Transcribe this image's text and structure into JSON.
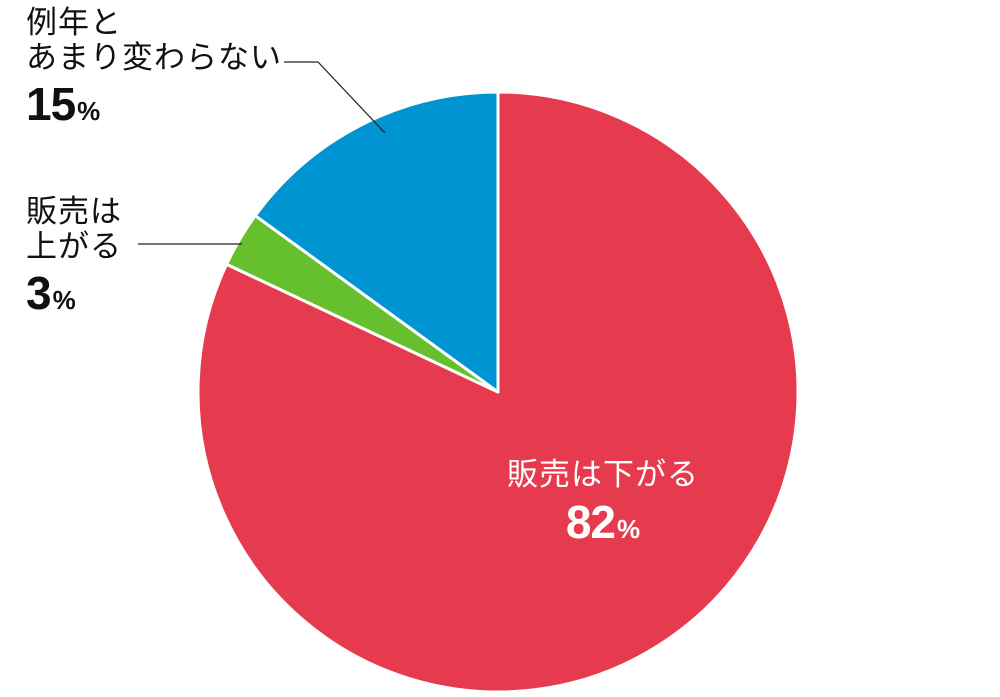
{
  "chart_data": {
    "type": "pie",
    "categories": [
      "販売は下がる",
      "販売は上がる",
      "例年とあまり変わらない"
    ],
    "values": [
      82,
      3,
      15
    ],
    "unit": "%",
    "colors": [
      "#e63a4e",
      "#66bf2c",
      "#0095d2"
    ],
    "slice_border": "#ffffff",
    "label_lines": {
      "0": "販売は下がる",
      "1a": "販売は",
      "1b": "上がる",
      "2a": "例年と",
      "2b": "あまり変わらない"
    },
    "value_labels": [
      "82",
      "3",
      "15"
    ]
  }
}
